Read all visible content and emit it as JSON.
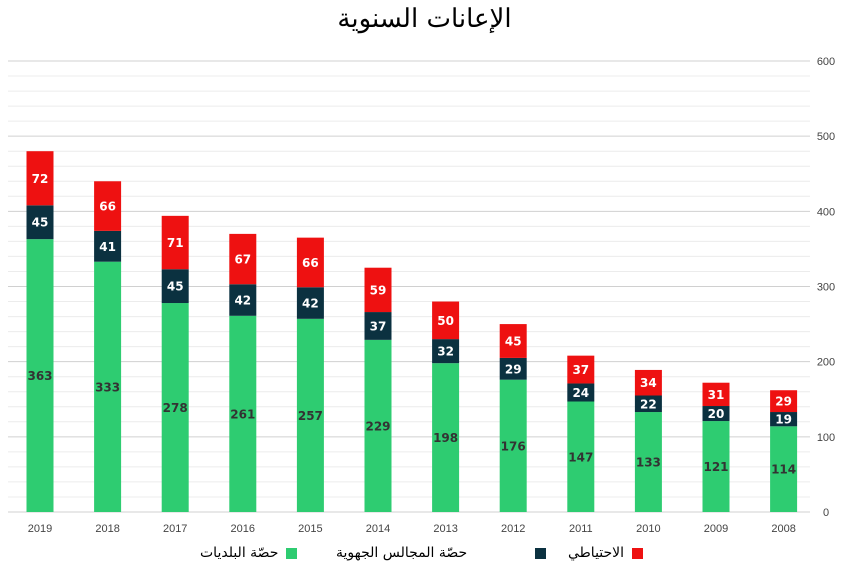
{
  "chart_data": {
    "type": "bar",
    "stacked": true,
    "title": "الإعانات السنوية",
    "categories": [
      "2019",
      "2018",
      "2017",
      "2016",
      "2015",
      "2014",
      "2013",
      "2012",
      "2011",
      "2010",
      "2009",
      "2008"
    ],
    "series": [
      {
        "name": "حصّة البلديات",
        "color": "#2ecc71",
        "label_color": "#333333",
        "values": [
          363,
          333,
          278,
          261,
          257,
          229,
          198,
          176,
          147,
          133,
          121,
          114
        ]
      },
      {
        "name": "حصّة المجالس الجهوية",
        "color": "#0b3140",
        "label_color": "#ffffff",
        "values": [
          45,
          41,
          45,
          42,
          42,
          37,
          32,
          29,
          24,
          22,
          20,
          19
        ]
      },
      {
        "name": "الاحتياطي",
        "color": "#ee1111",
        "label_color": "#ffffff",
        "values": [
          72,
          66,
          71,
          67,
          66,
          59,
          50,
          45,
          37,
          34,
          31,
          29
        ]
      }
    ],
    "ylim": [
      0,
      600
    ],
    "yticks": [
      0,
      100,
      200,
      300,
      400,
      500,
      600
    ],
    "y_axis_side": "right",
    "grid": true,
    "legend_position": "bottom"
  }
}
